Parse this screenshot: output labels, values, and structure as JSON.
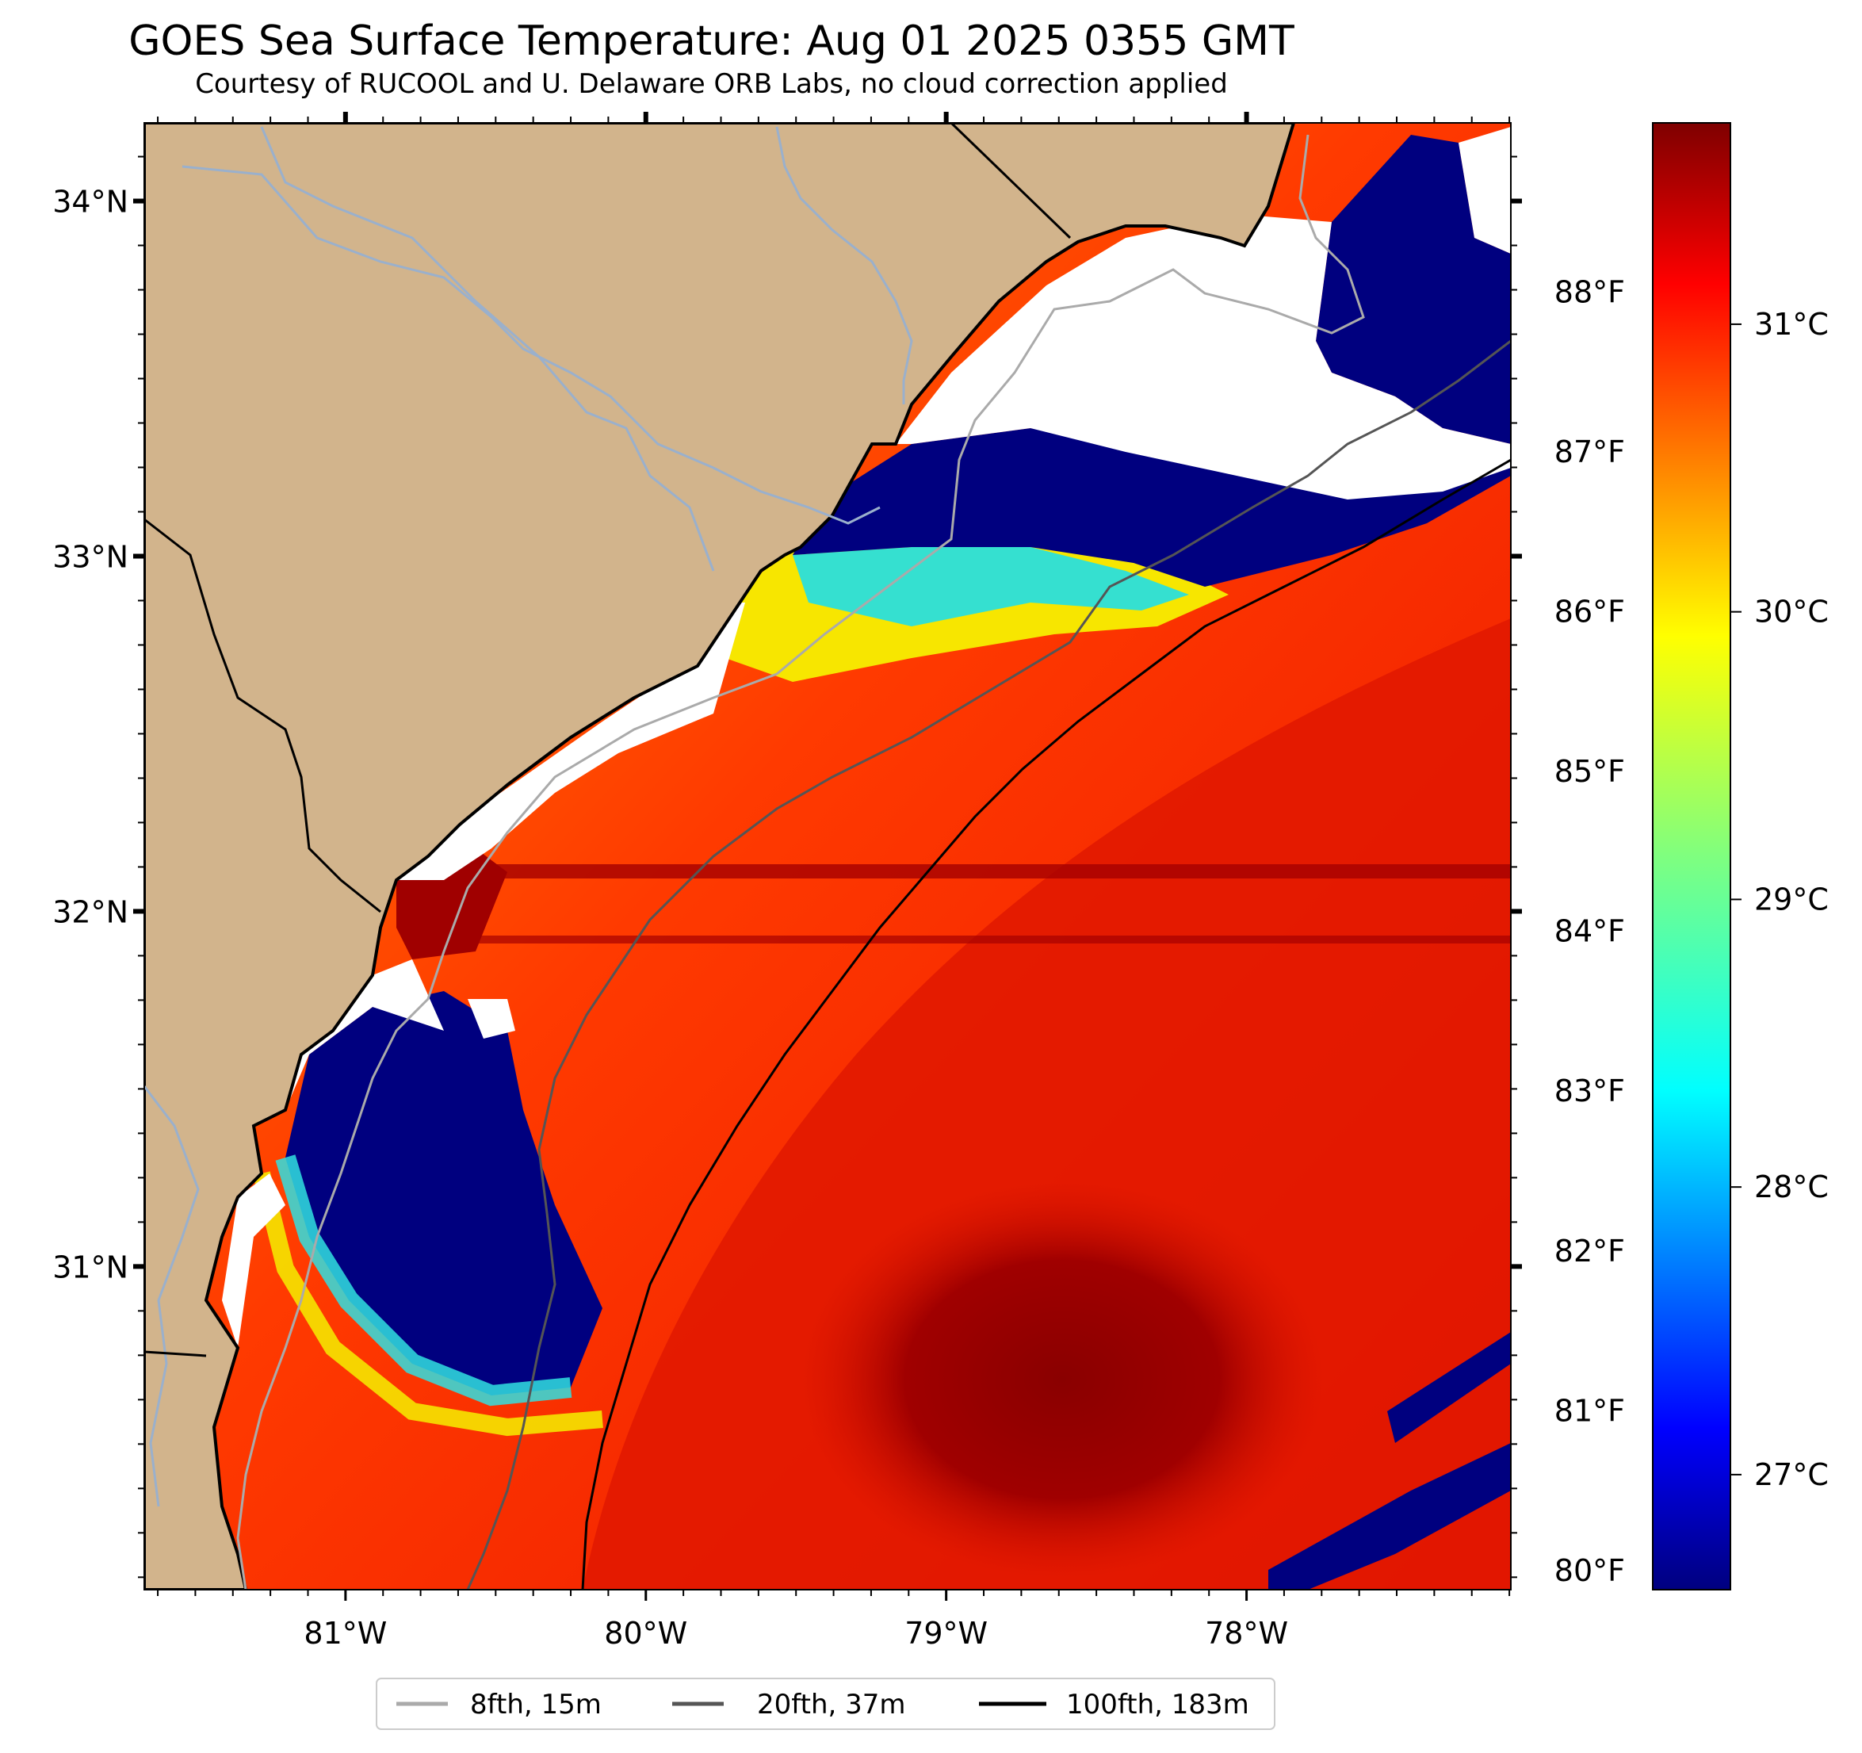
{
  "title": "GOES Sea Surface Temperature: Aug 01 2025 0355 GMT",
  "subtitle": "Courtesy of RUCOOL and U. Delaware ORB Labs, no cloud correction applied",
  "map": {
    "lon_range": [
      -81.67,
      -77.12
    ],
    "lat_range": [
      30.09,
      34.22
    ],
    "lon_ticks": [
      {
        "value": -81,
        "label": "81°W"
      },
      {
        "value": -80,
        "label": "80°W"
      },
      {
        "value": -79,
        "label": "79°W"
      },
      {
        "value": -78,
        "label": "78°W"
      }
    ],
    "lat_ticks": [
      {
        "value": 34,
        "label": "34°N"
      },
      {
        "value": 33,
        "label": "33°N"
      },
      {
        "value": 32,
        "label": "32°N"
      },
      {
        "value": 31,
        "label": "31°N"
      }
    ],
    "land_color": "#d2b48c",
    "no_data_color": "#ffffff"
  },
  "colorbar": {
    "colormap": "jet",
    "range_c": [
      26.6,
      31.7
    ],
    "celsius_ticks": [
      {
        "value": 31,
        "label": "31°C"
      },
      {
        "value": 30,
        "label": "30°C"
      },
      {
        "value": 29,
        "label": "29°C"
      },
      {
        "value": 28,
        "label": "28°C"
      },
      {
        "value": 27,
        "label": "27°C"
      }
    ],
    "fahrenheit_ticks": [
      {
        "value": 88,
        "label": "88°F"
      },
      {
        "value": 87,
        "label": "87°F"
      },
      {
        "value": 86,
        "label": "86°F"
      },
      {
        "value": 85,
        "label": "85°F"
      },
      {
        "value": 84,
        "label": "84°F"
      },
      {
        "value": 83,
        "label": "83°F"
      },
      {
        "value": 82,
        "label": "82°F"
      },
      {
        "value": 81,
        "label": "81°F"
      },
      {
        "value": 80,
        "label": "80°F"
      }
    ]
  },
  "legend": {
    "items": [
      {
        "label": "8fth, 15m",
        "color": "#aaaaaa"
      },
      {
        "label": "20fth, 37m",
        "color": "#555555"
      },
      {
        "label": "100fth, 183m",
        "color": "#000000"
      }
    ]
  }
}
